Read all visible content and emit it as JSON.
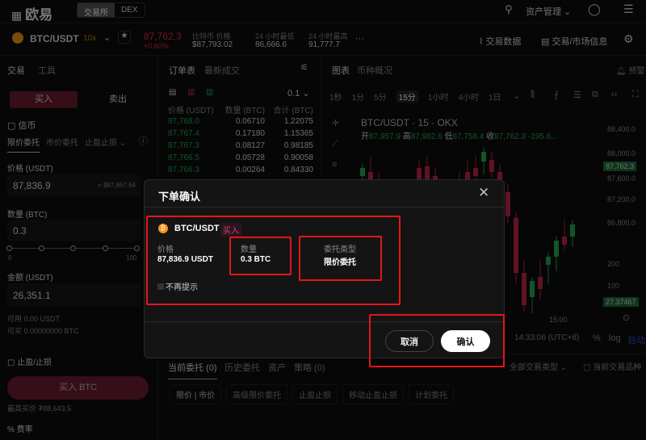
{
  "header": {
    "logo": "欧易",
    "tabs": [
      "交易所",
      "DEX"
    ],
    "asset_menu": "资产管理",
    "icons": [
      "search-icon",
      "user-icon",
      "menu-icon"
    ]
  },
  "ticker": {
    "pair": "BTC/USDT",
    "leverage": "10x",
    "price": "87,762.3",
    "change": "+0.60%",
    "index_label": "比特币 价格",
    "index_value": "$87,793.02",
    "low_label": "24 小时最低",
    "low_value": "86,666.6",
    "high_label": "24 小时最高",
    "high_value": "91,777.7",
    "more": "···",
    "trade_data": "交易数据",
    "market_info": "交易/市场信息"
  },
  "trade": {
    "tabs": [
      "交易",
      "工具"
    ],
    "buy": "买入",
    "sell": "卖出",
    "margin": "信币",
    "order_tabs": [
      "限价委托",
      "市价委托",
      "止盈止损"
    ],
    "price_label": "价格 (USDT)",
    "price_value": "87,836.9",
    "price_hint": "≈ $87,867.64",
    "qty_label": "数量 (BTC)",
    "qty_value": "0.3",
    "slider_min": "0",
    "slider_max": "100",
    "amount_label": "金额 (USDT)",
    "amount_value": "26,351.1",
    "avail": "可用 0.00 USDT",
    "can_buy": "可买 0.00000000 BTC",
    "tpsl": "止盈/止损",
    "buy_btn": "买入 BTC",
    "max_buy": "最高买价 ₮88,643.5",
    "fee": "费率"
  },
  "orderbook": {
    "tabs": [
      "订单表",
      "最新成交"
    ],
    "precision": "0.1",
    "headers": [
      "价格 (USDT)",
      "数量 (BTC)",
      "合计 (BTC)"
    ],
    "rows": [
      [
        "87,768.0",
        "0.06710",
        "1.22075"
      ],
      [
        "87,767.4",
        "0.17180",
        "1.15365"
      ],
      [
        "87,767.3",
        "0.08127",
        "0.98185"
      ],
      [
        "87,766.5",
        "0.05728",
        "0.90058"
      ],
      [
        "87,766.3",
        "0.00264",
        "0.84330"
      ]
    ]
  },
  "chart": {
    "tabs": [
      "图表",
      "币种概况"
    ],
    "alert": "预警",
    "intervals": [
      "1秒",
      "1分",
      "5分",
      "15分",
      "1小时",
      "4小时",
      "1日"
    ],
    "active_interval": "15分",
    "title": "BTC/USDT · 15 · OKX",
    "ohlc": {
      "o_label": "开",
      "o": "87,957.9",
      "h_label": "高",
      "h": "87,982.6",
      "l_label": "低",
      "l": "87,758.4",
      "c_label": "收",
      "c": "87,762.3",
      "chg": "-195.6..."
    },
    "yticks": [
      "88,400.0",
      "88,000.0",
      "87,600.0",
      "87,200.0",
      "86,800.0",
      "200",
      "100"
    ],
    "last_price": "87,762.3",
    "vol_label": "27.37467",
    "xtick": "15:00",
    "time": "14:33:06 (UTC+8)",
    "pct": "%",
    "log": "log",
    "auto": "自动"
  },
  "orders": {
    "tabs": [
      "当前委托 (0)",
      "历史委托",
      "资产",
      "策略 (0)"
    ],
    "filter": "全部交易类型",
    "current_only": "当前交易品种",
    "chips": [
      "限价 | 市价",
      "高级限价委托",
      "止盈止损",
      "移动止盈止损",
      "计划委托"
    ]
  },
  "modal": {
    "title": "下单确认",
    "pair": "BTC/USDT",
    "side": "买入",
    "price_label": "价格",
    "price": "87,836.9 USDT",
    "qty_label": "数量",
    "qty": "0.3 BTC",
    "type_label": "委托类型",
    "type": "限价委托",
    "no_remind": "不再提示",
    "cancel": "取消",
    "confirm": "确认"
  },
  "colors": {
    "up": "#25a750",
    "down": "#e0294a",
    "highlight": "#e3161b",
    "btc": "#f7931a"
  }
}
